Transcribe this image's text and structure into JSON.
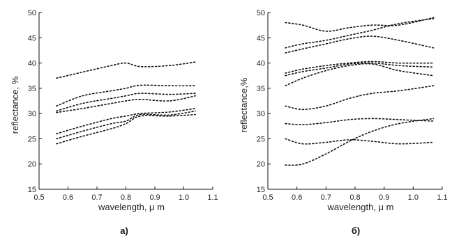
{
  "chart_data": [
    {
      "type": "line",
      "panel_label": "а)",
      "xlabel": "wavelength, μ m",
      "ylabel": "reflectance, %",
      "xlim": [
        0.5,
        1.1
      ],
      "ylim": [
        15,
        50
      ],
      "xticks": [
        "0.5",
        "0.6",
        "0.7",
        "0.8",
        "0.9",
        "1.0",
        "1.1"
      ],
      "yticks": [
        "15",
        "20",
        "25",
        "30",
        "35",
        "40",
        "45",
        "50"
      ],
      "grid": false,
      "line_style": "dotted",
      "series": [
        {
          "x": [
            0.56,
            0.65,
            0.75,
            0.8,
            0.85,
            0.95,
            1.04
          ],
          "y": [
            37.0,
            38.2,
            39.5,
            40.0,
            39.3,
            39.5,
            40.2
          ]
        },
        {
          "x": [
            0.56,
            0.65,
            0.75,
            0.8,
            0.85,
            0.95,
            1.04
          ],
          "y": [
            31.5,
            33.5,
            34.5,
            35.0,
            35.6,
            35.5,
            35.5
          ]
        },
        {
          "x": [
            0.56,
            0.65,
            0.75,
            0.8,
            0.85,
            0.95,
            1.04
          ],
          "y": [
            30.5,
            32.0,
            33.0,
            33.5,
            34.0,
            33.8,
            34.0
          ]
        },
        {
          "x": [
            0.56,
            0.65,
            0.75,
            0.8,
            0.85,
            0.95,
            1.04
          ],
          "y": [
            30.2,
            31.0,
            32.0,
            32.5,
            32.8,
            32.5,
            33.5
          ]
        },
        {
          "x": [
            0.56,
            0.65,
            0.75,
            0.8,
            0.85,
            0.95,
            1.04
          ],
          "y": [
            26.0,
            27.5,
            29.0,
            29.5,
            30.0,
            30.3,
            31.0
          ]
        },
        {
          "x": [
            0.56,
            0.65,
            0.75,
            0.8,
            0.85,
            0.95,
            1.04
          ],
          "y": [
            25.0,
            26.5,
            28.0,
            28.5,
            29.8,
            29.7,
            30.5
          ]
        },
        {
          "x": [
            0.56,
            0.65,
            0.75,
            0.8,
            0.85,
            0.95,
            1.04
          ],
          "y": [
            24.0,
            25.5,
            27.0,
            28.0,
            29.5,
            29.5,
            29.8
          ]
        }
      ]
    },
    {
      "type": "line",
      "panel_label": "б)",
      "xlabel": "wavelength,  μ m",
      "ylabel": "reflectance,%",
      "xlim": [
        0.5,
        1.1
      ],
      "ylim": [
        15,
        50
      ],
      "xticks": [
        "0.5",
        "0.6",
        "0.7",
        "0.8",
        "0.9",
        "1.0",
        "1.1"
      ],
      "yticks": [
        "15",
        "20",
        "25",
        "30",
        "35",
        "40",
        "45",
        "50"
      ],
      "grid": false,
      "line_style": "dotted",
      "series": [
        {
          "x": [
            0.56,
            0.62,
            0.7,
            0.78,
            0.86,
            0.95,
            1.07
          ],
          "y": [
            48.0,
            47.5,
            46.3,
            47.0,
            47.5,
            47.5,
            49.0
          ]
        },
        {
          "x": [
            0.56,
            0.62,
            0.7,
            0.78,
            0.86,
            0.95,
            1.07
          ],
          "y": [
            43.0,
            43.8,
            44.5,
            45.5,
            46.5,
            47.8,
            48.8
          ]
        },
        {
          "x": [
            0.56,
            0.62,
            0.7,
            0.78,
            0.86,
            0.95,
            1.07
          ],
          "y": [
            42.0,
            42.8,
            43.8,
            44.8,
            45.3,
            44.5,
            43.0
          ]
        },
        {
          "x": [
            0.56,
            0.62,
            0.7,
            0.78,
            0.86,
            0.95,
            1.07
          ],
          "y": [
            38.0,
            38.8,
            39.5,
            40.0,
            40.3,
            40.0,
            40.0
          ]
        },
        {
          "x": [
            0.56,
            0.62,
            0.7,
            0.78,
            0.86,
            0.95,
            1.07
          ],
          "y": [
            37.5,
            38.3,
            39.0,
            39.8,
            40.0,
            39.5,
            39.2
          ]
        },
        {
          "x": [
            0.56,
            0.62,
            0.7,
            0.78,
            0.86,
            0.95,
            1.07
          ],
          "y": [
            35.5,
            37.0,
            38.5,
            39.5,
            39.8,
            38.5,
            37.5
          ]
        },
        {
          "x": [
            0.56,
            0.62,
            0.7,
            0.78,
            0.86,
            0.95,
            1.07
          ],
          "y": [
            31.5,
            30.8,
            31.5,
            33.0,
            34.0,
            34.5,
            35.5
          ]
        },
        {
          "x": [
            0.56,
            0.62,
            0.7,
            0.78,
            0.86,
            0.95,
            1.07
          ],
          "y": [
            28.0,
            27.8,
            28.2,
            28.8,
            29.0,
            28.8,
            28.5
          ]
        },
        {
          "x": [
            0.56,
            0.62,
            0.7,
            0.78,
            0.86,
            0.95,
            1.07
          ],
          "y": [
            25.0,
            24.0,
            24.3,
            24.8,
            24.5,
            24.0,
            24.3
          ]
        },
        {
          "x": [
            0.56,
            0.62,
            0.7,
            0.78,
            0.86,
            0.95,
            1.07
          ],
          "y": [
            19.8,
            20.0,
            22.0,
            24.5,
            26.5,
            28.0,
            29.0
          ]
        }
      ]
    }
  ]
}
